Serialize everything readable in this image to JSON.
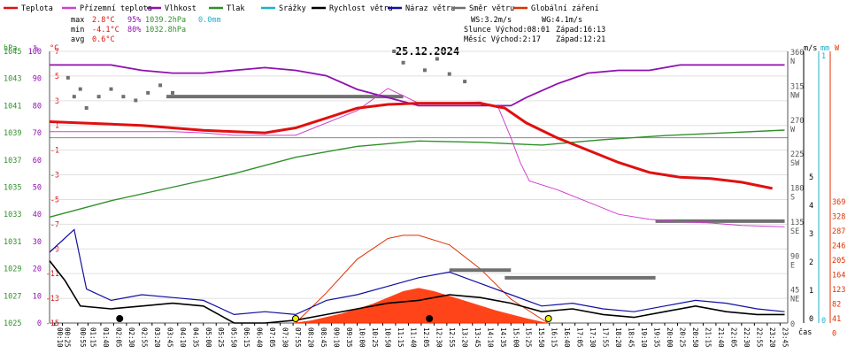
{
  "chart_data": {
    "type": "line",
    "date": "25.12.2024",
    "x_axis_label": "čas",
    "legend": [
      {
        "label": "Teplota",
        "color": "#e01010"
      },
      {
        "label": "Přízemní teplota",
        "color": "#d040d0"
      },
      {
        "label": "Vlhkost",
        "color": "#9010b0"
      },
      {
        "label": "Tlak",
        "color": "#30902a"
      },
      {
        "label": "Srážky",
        "color": "#20b0c8"
      },
      {
        "label": "Rychlost větru",
        "color": "#000000"
      },
      {
        "label": "Náraz větru",
        "color": "#1010a0"
      },
      {
        "label": "Směr větru",
        "color": "#707070"
      },
      {
        "label": "Globální záření",
        "color": "#e03000"
      }
    ],
    "stats": {
      "max_label": "max",
      "max_temp": "2.8°C",
      "max_hum": "95%",
      "max_pres": "1039.2hPa",
      "rain": "0.0mm",
      "min_label": "min",
      "min_temp": "-4.1°C",
      "min_hum": "80%",
      "min_pres": "1032.8hPa",
      "avg_label": "avg",
      "avg_temp": "0.6°C",
      "ws": "WS:3.2m/s",
      "wg": "WG:4.1m/s",
      "sun_rise": "Slunce Východ:08:01",
      "sun_set": "Západ:16:13",
      "moon_rise": "Měsíc  Východ:2:17",
      "moon_set": "Západ:12:21"
    },
    "axes": {
      "hpa": {
        "unit": "hPa",
        "ticks": [
          "1045",
          "1043",
          "1041",
          "1039",
          "1037",
          "1035",
          "1033",
          "1031",
          "1029",
          "1027",
          "1025"
        ],
        "range": [
          1025,
          1045
        ]
      },
      "pct": {
        "unit": "%",
        "ticks": [
          "100",
          "90",
          "80",
          "70",
          "60",
          "50",
          "40",
          "30",
          "20",
          "10",
          "0"
        ],
        "range": [
          0,
          100
        ]
      },
      "temp": {
        "unit": "°C",
        "ticks": [
          "7",
          "5",
          "3",
          "1",
          "-1",
          "-3",
          "-5",
          "-7",
          "-9",
          "-11",
          "-13",
          "-15"
        ],
        "range": [
          -15,
          7
        ]
      },
      "dir": {
        "ticks": [
          "360 N",
          "315 NW",
          "270 W",
          "225 SW",
          "180 S",
          "135 SE",
          "90 E",
          "45 NE",
          "0"
        ]
      },
      "wind": {
        "unit": "m/s",
        "ticks": [
          "5",
          "4",
          "3",
          "2",
          "1",
          "0"
        ]
      },
      "rain": {
        "unit": "mm",
        "ticks": [
          "1",
          "0"
        ]
      },
      "rad": {
        "unit": "W",
        "ticks": [
          "369",
          "328",
          "287",
          "246",
          "205",
          "164",
          "123",
          "82",
          "41",
          "0"
        ]
      },
      "time_ticks": [
        "00:10",
        "00:25",
        "00:55",
        "01:15",
        "01:40",
        "02:05",
        "02:30",
        "02:55",
        "03:20",
        "03:45",
        "04:10",
        "04:35",
        "05:00",
        "05:25",
        "05:50",
        "06:15",
        "06:40",
        "07:05",
        "07:30",
        "07:55",
        "08:20",
        "08:45",
        "09:10",
        "09:35",
        "10:00",
        "10:25",
        "10:50",
        "11:15",
        "11:40",
        "12:05",
        "12:30",
        "12:55",
        "13:20",
        "13:45",
        "14:10",
        "14:35",
        "15:00",
        "15:25",
        "15:50",
        "16:15",
        "16:40",
        "17:05",
        "17:30",
        "17:55",
        "18:20",
        "18:45",
        "19:10",
        "19:35",
        "20:00",
        "20:25",
        "20:50",
        "21:15",
        "21:40",
        "22:05",
        "22:30",
        "22:55",
        "23:20",
        "23:45"
      ]
    },
    "series": {
      "temperature": [
        [
          0,
          1.3
        ],
        [
          2,
          1.1
        ],
        [
          3,
          1.0
        ],
        [
          4,
          0.8
        ],
        [
          5,
          0.6
        ],
        [
          6,
          0.5
        ],
        [
          7,
          0.4
        ],
        [
          8,
          0.8
        ],
        [
          9,
          1.6
        ],
        [
          10,
          2.4
        ],
        [
          11,
          2.7
        ],
        [
          12,
          2.8
        ],
        [
          13,
          2.8
        ],
        [
          14,
          2.8
        ],
        [
          14.8,
          2.4
        ],
        [
          15.5,
          1.2
        ],
        [
          16.5,
          0.0
        ],
        [
          17.5,
          -1.0
        ],
        [
          18.5,
          -2.0
        ],
        [
          19.5,
          -2.8
        ],
        [
          20.5,
          -3.2
        ],
        [
          21.5,
          -3.3
        ],
        [
          22.5,
          -3.6
        ],
        [
          23.5,
          -4.1
        ]
      ],
      "ground_temp": [
        [
          0,
          0.5
        ],
        [
          2,
          0.5
        ],
        [
          4,
          0.5
        ],
        [
          5,
          0.4
        ],
        [
          6,
          0.2
        ],
        [
          7,
          0.2
        ],
        [
          8,
          0.2
        ],
        [
          9,
          1.2
        ],
        [
          10,
          2.2
        ],
        [
          11,
          4.0
        ],
        [
          12,
          2.8
        ],
        [
          13,
          2.8
        ],
        [
          14,
          2.9
        ],
        [
          14.6,
          2.4
        ],
        [
          15.0,
          0.0
        ],
        [
          15.3,
          -2.0
        ],
        [
          15.6,
          -3.5
        ],
        [
          16.5,
          -4.2
        ],
        [
          17.5,
          -5.2
        ],
        [
          18.5,
          -6.2
        ],
        [
          19.5,
          -6.6
        ],
        [
          20.5,
          -6.8
        ],
        [
          21.5,
          -6.9
        ],
        [
          22.5,
          -7.1
        ],
        [
          23.9,
          -7.2
        ]
      ],
      "humidity": [
        [
          0,
          95
        ],
        [
          2,
          95
        ],
        [
          3,
          93
        ],
        [
          4,
          92
        ],
        [
          5,
          92
        ],
        [
          6,
          93
        ],
        [
          7,
          94
        ],
        [
          8,
          93
        ],
        [
          9,
          91
        ],
        [
          10,
          86
        ],
        [
          11,
          83
        ],
        [
          12,
          80
        ],
        [
          13,
          80
        ],
        [
          14,
          80
        ],
        [
          15,
          80
        ],
        [
          15.5,
          83
        ],
        [
          16.5,
          88
        ],
        [
          17.5,
          92
        ],
        [
          18.5,
          93
        ],
        [
          19.5,
          93
        ],
        [
          20.5,
          95
        ],
        [
          21.5,
          95
        ],
        [
          22.5,
          95
        ],
        [
          23.9,
          95
        ]
      ],
      "pressure": [
        [
          0,
          1032.8
        ],
        [
          2,
          1034.0
        ],
        [
          4,
          1035.0
        ],
        [
          6,
          1036.0
        ],
        [
          8,
          1037.2
        ],
        [
          10,
          1038.0
        ],
        [
          12,
          1038.4
        ],
        [
          14,
          1038.3
        ],
        [
          15,
          1038.2
        ],
        [
          16,
          1038.1
        ],
        [
          18,
          1038.5
        ],
        [
          20,
          1038.8
        ],
        [
          22,
          1039.0
        ],
        [
          23.9,
          1039.2
        ]
      ],
      "radiation": [
        [
          7.9,
          0
        ],
        [
          8.5,
          8
        ],
        [
          9.5,
          30
        ],
        [
          10.5,
          60
        ],
        [
          11.5,
          100
        ],
        [
          12.0,
          110
        ],
        [
          12.5,
          100
        ],
        [
          13.5,
          70
        ],
        [
          14.5,
          40
        ],
        [
          15.5,
          15
        ],
        [
          16.2,
          0
        ]
      ],
      "radiation_theoretical": [
        [
          8.0,
          0
        ],
        [
          9.0,
          95
        ],
        [
          10.0,
          200
        ],
        [
          11.0,
          265
        ],
        [
          11.5,
          275
        ],
        [
          12.0,
          275
        ],
        [
          13.0,
          245
        ],
        [
          14.0,
          170
        ],
        [
          15.0,
          75
        ],
        [
          16.2,
          0
        ]
      ],
      "wind_speed": [
        [
          0,
          2.2
        ],
        [
          0.5,
          1.5
        ],
        [
          1,
          0.6
        ],
        [
          2,
          0.5
        ],
        [
          3,
          0.6
        ],
        [
          4,
          0.7
        ],
        [
          5,
          0.6
        ],
        [
          6,
          0
        ],
        [
          7,
          0
        ],
        [
          8,
          0.1
        ],
        [
          9,
          0.3
        ],
        [
          10,
          0.5
        ],
        [
          11,
          0.7
        ],
        [
          12,
          0.8
        ],
        [
          13,
          1.0
        ],
        [
          14,
          0.9
        ],
        [
          15,
          0.7
        ],
        [
          16,
          0.4
        ],
        [
          17,
          0.5
        ],
        [
          18,
          0.3
        ],
        [
          19,
          0.2
        ],
        [
          20,
          0.4
        ],
        [
          21,
          0.6
        ],
        [
          22,
          0.4
        ],
        [
          23,
          0.3
        ],
        [
          23.9,
          0.3
        ]
      ],
      "wind_gust": [
        [
          0,
          2.5
        ],
        [
          0.8,
          3.3
        ],
        [
          1.2,
          1.2
        ],
        [
          2,
          0.8
        ],
        [
          3,
          1.0
        ],
        [
          4,
          0.9
        ],
        [
          5,
          0.8
        ],
        [
          6,
          0.3
        ],
        [
          7,
          0.4
        ],
        [
          8,
          0.3
        ],
        [
          9,
          0.8
        ],
        [
          10,
          1.0
        ],
        [
          11,
          1.3
        ],
        [
          12,
          1.6
        ],
        [
          13,
          1.8
        ],
        [
          14,
          1.4
        ],
        [
          15,
          1.0
        ],
        [
          16,
          0.6
        ],
        [
          17,
          0.7
        ],
        [
          18,
          0.5
        ],
        [
          19,
          0.4
        ],
        [
          20,
          0.6
        ],
        [
          21,
          0.8
        ],
        [
          22,
          0.7
        ],
        [
          23,
          0.5
        ],
        [
          23.9,
          0.4
        ]
      ],
      "wind_dir": [
        [
          0.6,
          325
        ],
        [
          0.8,
          300
        ],
        [
          1.0,
          310
        ],
        [
          1.2,
          285
        ],
        [
          1.6,
          300
        ],
        [
          2.0,
          310
        ],
        [
          2.4,
          300
        ],
        [
          2.8,
          295
        ],
        [
          3.2,
          305
        ],
        [
          3.6,
          315
        ],
        [
          4.0,
          305
        ],
        [
          11.2,
          360
        ],
        [
          11.5,
          345
        ],
        [
          12.2,
          335
        ],
        [
          12.6,
          350
        ],
        [
          13.0,
          330
        ],
        [
          13.5,
          320
        ]
      ],
      "wind_dir_bars": [
        [
          3.8,
          300,
          11.5
        ],
        [
          14.8,
          60,
          19.7
        ],
        [
          19.7,
          135,
          23.9
        ],
        [
          13.0,
          70,
          15.0
        ]
      ],
      "sun_markers": [
        {
          "t": 8.0,
          "color": "#f0f000"
        },
        {
          "t": 16.22,
          "color": "#f0f000"
        },
        {
          "t": 2.28,
          "color": "#000000"
        },
        {
          "t": 12.35,
          "color": "#000000"
        }
      ]
    }
  }
}
